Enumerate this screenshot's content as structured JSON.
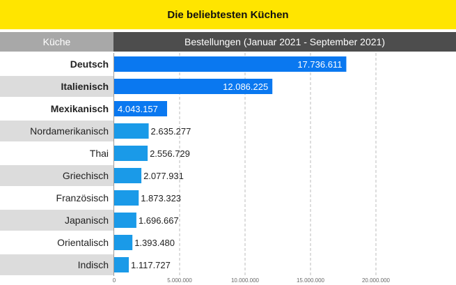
{
  "header": {
    "title": "Die beliebtesten Küchen",
    "left_column": "Küche",
    "right_column": "Bestellungen (Januar 2021 - September 2021)"
  },
  "colors": {
    "title_background": "#ffe500",
    "bar_highlight": "#0a78f0",
    "bar_normal": "#1a9ae8",
    "row_shade": "#dcdcdc"
  },
  "chart_data": {
    "type": "bar",
    "orientation": "horizontal",
    "categories": [
      "Deutsch",
      "Italienisch",
      "Mexikanisch",
      "Nordamerikanisch",
      "Thai",
      "Griechisch",
      "Französisch",
      "Japanisch",
      "Orientalisch",
      "Indisch"
    ],
    "values": [
      17736611,
      12086225,
      4043157,
      2635277,
      2556729,
      2077931,
      1873323,
      1696667,
      1393480,
      1117727
    ],
    "value_labels": [
      "17.736.611",
      "12.086.225",
      "4.043.157",
      "2.635.277",
      "2.556.729",
      "2.077.931",
      "1.873.323",
      "1.696.667",
      "1.393.480",
      "1.117.727"
    ],
    "highlighted": [
      true,
      true,
      true,
      false,
      false,
      false,
      false,
      false,
      false,
      false
    ],
    "xlim": [
      0,
      20000000
    ],
    "xticks": [
      0,
      5000000,
      10000000,
      15000000,
      20000000
    ],
    "xtick_labels": [
      "0",
      "5.000.000",
      "10.000.000",
      "15.000.000",
      "20.000.000"
    ],
    "grid": true
  }
}
